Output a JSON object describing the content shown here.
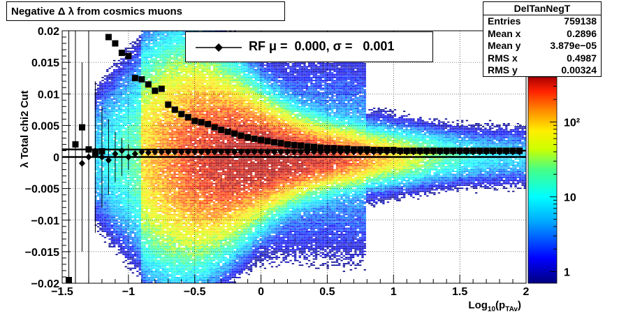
{
  "title": "Negative Δ λ from cosmics muons",
  "stats": {
    "name": "DelTanNegT",
    "rows": [
      {
        "label": "Entries",
        "value": "759138"
      },
      {
        "label": "Mean x",
        "value": "0.2896"
      },
      {
        "label": "Mean y",
        "value": "3.879e−05"
      },
      {
        "label": "RMS x",
        "value": "0.4987"
      },
      {
        "label": "RMS y",
        "value": "0.00324"
      }
    ]
  },
  "legend": {
    "text": "RF μ =  0.000, σ =   0.001"
  },
  "chart_data": {
    "type": "heatmap",
    "xlabel": "Log10(pTAv)",
    "ylabel": "λ Total chi2 Cut",
    "xlim": [
      -1.5,
      2.0
    ],
    "ylim": [
      -0.02,
      0.02
    ],
    "xticks": [
      "−1.5",
      "−1",
      "−0.5",
      "0",
      "0.5",
      "1",
      "1.5",
      "2"
    ],
    "yticks": [
      "−0.02",
      "−0.015",
      "−0.01",
      "−0.005",
      "0",
      "0.005",
      "0.01",
      "0.015",
      "0.02"
    ],
    "grid": true,
    "colorbar": {
      "scale": "log",
      "range": [
        0.7,
        400
      ],
      "ticks": [
        {
          "value": 1,
          "label": "1"
        },
        {
          "value": 10,
          "label": "10"
        },
        {
          "value": 100,
          "label": "10²"
        }
      ]
    },
    "series": [
      {
        "name": "mean",
        "x": [
          -1.4,
          -1.35,
          -1.3,
          -1.25,
          -1.2,
          -1.15,
          -1.1,
          -1.05,
          -1.0,
          -0.95,
          -0.9,
          -0.85,
          -0.8,
          -0.75,
          -0.7,
          -0.65,
          -0.6,
          -0.55,
          -0.5,
          -0.45,
          -0.4,
          -0.35,
          -0.3,
          -0.25,
          -0.2,
          -0.15,
          -0.1,
          -0.05,
          0.0,
          0.05,
          0.1,
          0.15,
          0.2,
          0.25,
          0.3,
          0.35,
          0.4,
          0.45,
          0.5,
          0.55,
          0.6,
          0.65,
          0.7,
          0.75,
          0.8,
          0.85,
          0.9,
          0.95,
          1.0,
          1.05,
          1.1,
          1.15,
          1.2,
          1.25,
          1.3,
          1.35,
          1.4,
          1.45,
          1.5,
          1.55,
          1.6,
          1.65,
          1.7,
          1.75,
          1.8,
          1.85,
          1.9,
          1.95
        ],
        "y": [
          0.002,
          -0.001,
          0.0,
          0.001,
          0.0,
          -0.0005,
          0.0005,
          0.001,
          0.0,
          0.0005,
          0.0008,
          0.0007,
          0.0008,
          0.0008,
          0.0008,
          0.0008,
          0.0008,
          0.0008,
          0.0008,
          0.0008,
          0.0008,
          0.0008,
          0.0008,
          0.0008,
          0.0008,
          0.0008,
          0.0008,
          0.0008,
          0.0008,
          0.0008,
          0.0008,
          0.0008,
          0.0008,
          0.0008,
          0.0008,
          0.0008,
          0.0008,
          0.0008,
          0.0008,
          0.0008,
          0.0008,
          0.0008,
          0.0008,
          0.0008,
          0.0008,
          0.0008,
          0.0008,
          0.0008,
          0.0008,
          0.0008,
          0.0008,
          0.0008,
          0.0008,
          0.0008,
          0.0008,
          0.0008,
          0.0008,
          0.0008,
          0.0008,
          0.0008,
          0.0008,
          0.0008,
          0.0008,
          0.0008,
          0.0008,
          0.0008,
          0.0008,
          0.0008
        ]
      },
      {
        "name": "rms",
        "x": [
          -1.45,
          -1.4,
          -1.35,
          -1.3,
          -1.25,
          -1.2,
          -1.15,
          -1.1,
          -1.05,
          -1.0,
          -0.95,
          -0.9,
          -0.85,
          -0.8,
          -0.75,
          -0.7,
          -0.65,
          -0.6,
          -0.55,
          -0.5,
          -0.45,
          -0.4,
          -0.35,
          -0.3,
          -0.25,
          -0.2,
          -0.15,
          -0.1,
          -0.05,
          0.0,
          0.05,
          0.1,
          0.15,
          0.2,
          0.25,
          0.3,
          0.35,
          0.4,
          0.45,
          0.5,
          0.55,
          0.6,
          0.65,
          0.7,
          0.75,
          0.8,
          0.85,
          0.9,
          0.95,
          1.0,
          1.05,
          1.1,
          1.15,
          1.2,
          1.25,
          1.3,
          1.35,
          1.4,
          1.45,
          1.5,
          1.55,
          1.6,
          1.65,
          1.7,
          1.75,
          1.8,
          1.85,
          1.9,
          1.95
        ],
        "y": [
          -0.0195,
          0.002,
          0.0047,
          0.0012,
          0.0006,
          0.0009,
          0.019,
          0.018,
          0.0165,
          0.016,
          0.0125,
          0.0123,
          0.0115,
          0.0105,
          0.0108,
          0.0083,
          0.0075,
          0.0068,
          0.0063,
          0.0057,
          0.0055,
          0.0052,
          0.0047,
          0.0043,
          0.004,
          0.0037,
          0.0034,
          0.0031,
          0.0029,
          0.0027,
          0.0025,
          0.0023,
          0.0022,
          0.002,
          0.0019,
          0.0018,
          0.0017,
          0.0016,
          0.0015,
          0.0014,
          0.0014,
          0.0013,
          0.0013,
          0.0012,
          0.0012,
          0.0012,
          0.0011,
          0.0011,
          0.0011,
          0.0011,
          0.001,
          0.001,
          0.001,
          0.001,
          0.001,
          0.001,
          0.001,
          0.001,
          0.001,
          0.001,
          0.001,
          0.001,
          0.001,
          0.001,
          0.001,
          0.001,
          0.001,
          0.001,
          0.001
        ]
      }
    ],
    "fit_line": {
      "y": 0.0
    },
    "rms_fit_line": {
      "x_start": -1.5,
      "x_end": 2.0,
      "y_start": 0.0012,
      "y_end": 0.001
    }
  }
}
